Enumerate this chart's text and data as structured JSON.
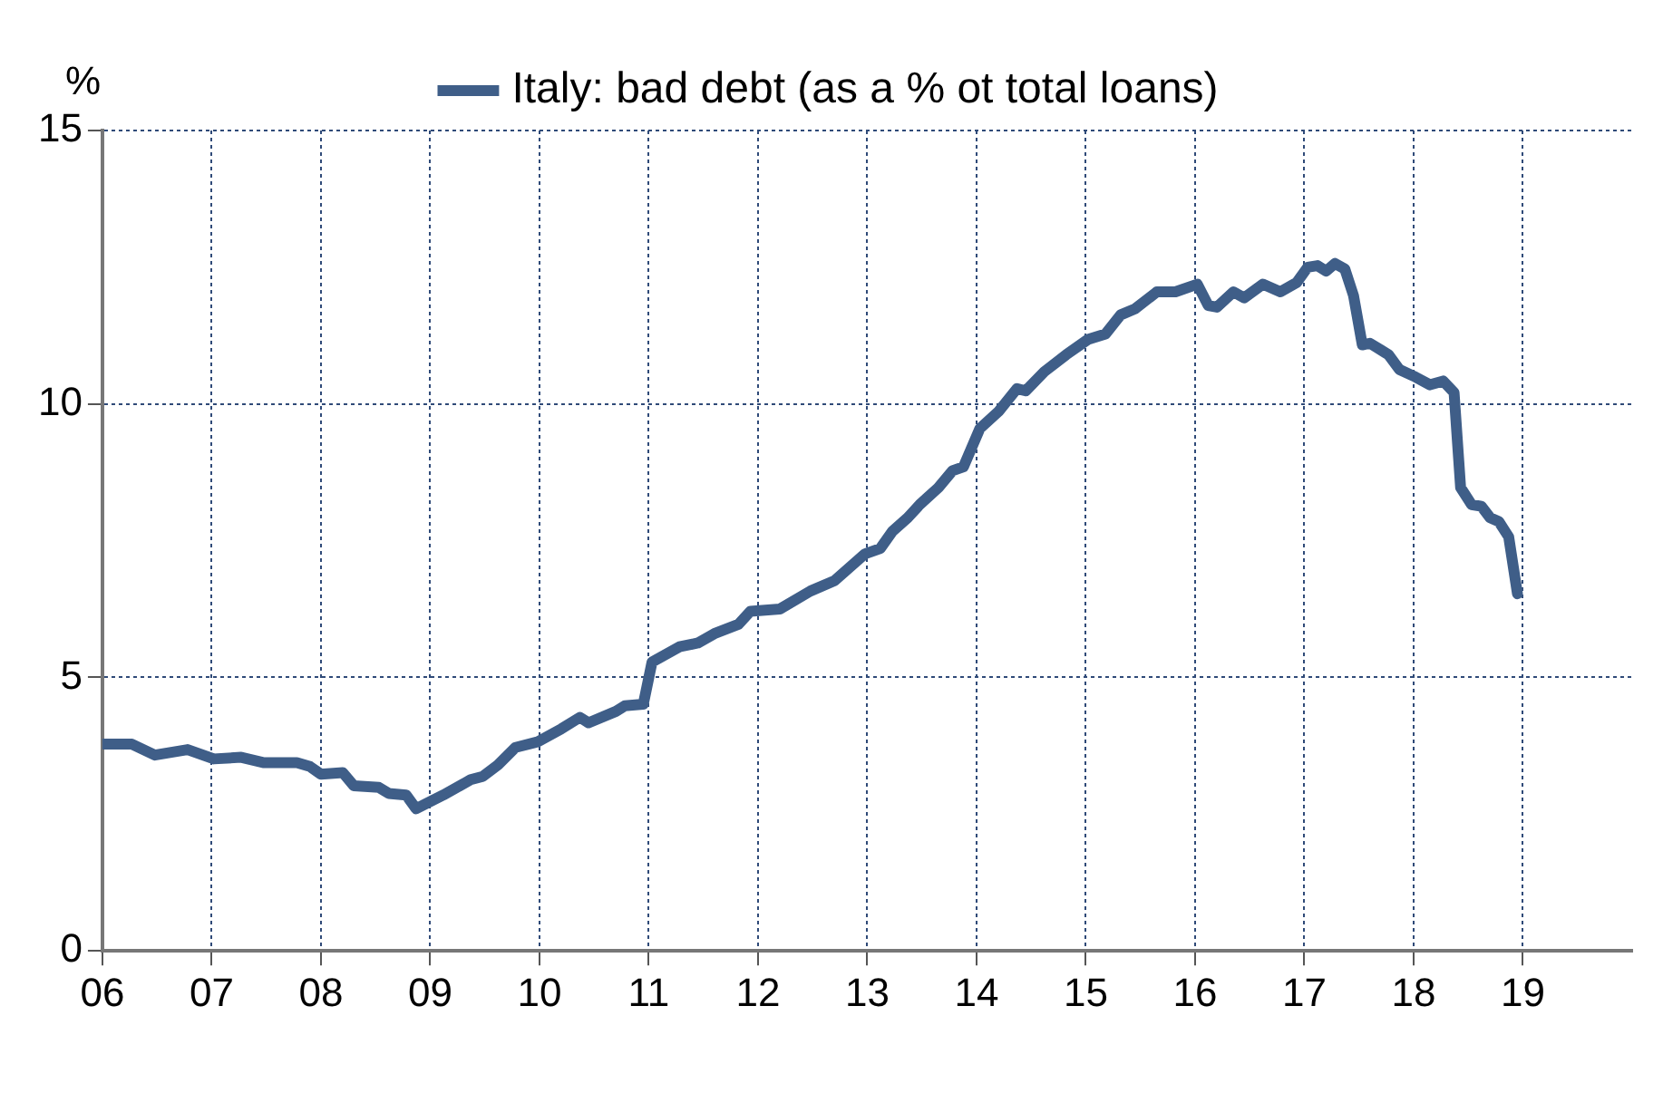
{
  "chart_data": {
    "type": "line",
    "ylabel": "%",
    "legend": "top",
    "grid": true,
    "marker": "none",
    "line_style": "solid",
    "xlim": [
      2006,
      2020
    ],
    "xticks": [
      {
        "value": 2006,
        "label": "06"
      },
      {
        "value": 2007,
        "label": "07"
      },
      {
        "value": 2008,
        "label": "08"
      },
      {
        "value": 2009,
        "label": "09"
      },
      {
        "value": 2010,
        "label": "10"
      },
      {
        "value": 2011,
        "label": "11"
      },
      {
        "value": 2012,
        "label": "12"
      },
      {
        "value": 2013,
        "label": "13"
      },
      {
        "value": 2014,
        "label": "14"
      },
      {
        "value": 2015,
        "label": "15"
      },
      {
        "value": 2016,
        "label": "16"
      },
      {
        "value": 2017,
        "label": "17"
      },
      {
        "value": 2018,
        "label": "18"
      },
      {
        "value": 2019,
        "label": "19"
      }
    ],
    "ylim": [
      0,
      15
    ],
    "yticks": [
      0,
      5,
      10,
      15
    ],
    "series": [
      {
        "name": "Italy: bad debt (as a % ot total loans)",
        "color": "#3f5e88",
        "x": [
          2006.0,
          2006.27,
          2006.48,
          2006.78,
          2007.02,
          2007.27,
          2007.48,
          2007.78,
          2007.9,
          2008.0,
          2008.2,
          2008.3,
          2008.53,
          2008.62,
          2008.78,
          2008.87,
          2009.12,
          2009.37,
          2009.48,
          2009.62,
          2009.78,
          2009.98,
          2010.2,
          2010.37,
          2010.45,
          2010.7,
          2010.78,
          2010.95,
          2011.03,
          2011.28,
          2011.45,
          2011.6,
          2011.82,
          2011.93,
          2012.2,
          2012.48,
          2012.7,
          2012.98,
          2013.12,
          2013.23,
          2013.37,
          2013.48,
          2013.65,
          2013.78,
          2013.88,
          2014.03,
          2014.2,
          2014.37,
          2014.45,
          2014.62,
          2014.82,
          2015.02,
          2015.18,
          2015.32,
          2015.45,
          2015.65,
          2015.82,
          2016.02,
          2016.12,
          2016.2,
          2016.35,
          2016.45,
          2016.62,
          2016.78,
          2016.93,
          2017.03,
          2017.12,
          2017.2,
          2017.28,
          2017.37,
          2017.45,
          2017.53,
          2017.6,
          2017.77,
          2017.87,
          2018.02,
          2018.15,
          2018.27,
          2018.37,
          2018.43,
          2018.53,
          2018.62,
          2018.7,
          2018.78,
          2018.87,
          2018.95
        ],
        "values": [
          3.78,
          3.78,
          3.58,
          3.68,
          3.51,
          3.54,
          3.44,
          3.44,
          3.37,
          3.23,
          3.26,
          3.02,
          2.99,
          2.88,
          2.85,
          2.6,
          2.85,
          3.13,
          3.19,
          3.4,
          3.72,
          3.82,
          4.06,
          4.27,
          4.17,
          4.38,
          4.48,
          4.51,
          5.28,
          5.56,
          5.63,
          5.8,
          5.97,
          6.21,
          6.25,
          6.58,
          6.77,
          7.26,
          7.36,
          7.67,
          7.92,
          8.16,
          8.47,
          8.78,
          8.85,
          9.55,
          9.86,
          10.28,
          10.24,
          10.59,
          10.9,
          11.18,
          11.28,
          11.63,
          11.74,
          12.05,
          12.05,
          12.19,
          11.8,
          11.77,
          12.05,
          11.94,
          12.19,
          12.05,
          12.22,
          12.5,
          12.53,
          12.43,
          12.57,
          12.47,
          11.98,
          11.08,
          11.11,
          10.9,
          10.63,
          10.49,
          10.35,
          10.42,
          10.21,
          8.47,
          8.16,
          8.13,
          7.92,
          7.85,
          7.57,
          6.53
        ]
      }
    ]
  }
}
